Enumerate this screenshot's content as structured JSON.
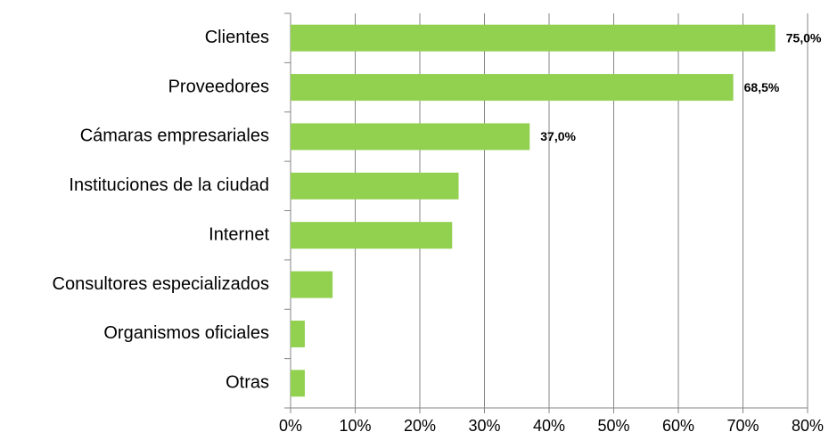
{
  "chart_data": {
    "type": "bar",
    "categories": [
      "Clientes",
      "Proveedores",
      "Cámaras empresariales",
      "Instituciones de la ciudad",
      "Internet",
      "Consultores especializados",
      "Organismos oficiales",
      "Otras"
    ],
    "values": [
      75.0,
      68.5,
      37.0,
      26.0,
      25.0,
      6.5,
      2.2,
      2.2
    ],
    "value_labels": [
      "75,0%",
      "68,5%",
      "37,0%",
      null,
      null,
      null,
      null,
      null
    ],
    "color": "#92d050",
    "xlim": [
      0,
      80
    ],
    "xticks": [
      {
        "value": 0,
        "label": "0%"
      },
      {
        "value": 10,
        "label": "10%"
      },
      {
        "value": 20,
        "label": "20%"
      },
      {
        "value": 30,
        "label": "30%"
      },
      {
        "value": 40,
        "label": "40%"
      },
      {
        "value": 50,
        "label": "50%"
      },
      {
        "value": 60,
        "label": "60%"
      },
      {
        "value": 70,
        "label": "70%"
      },
      {
        "value": 80,
        "label": "80%"
      }
    ],
    "grid": true
  }
}
